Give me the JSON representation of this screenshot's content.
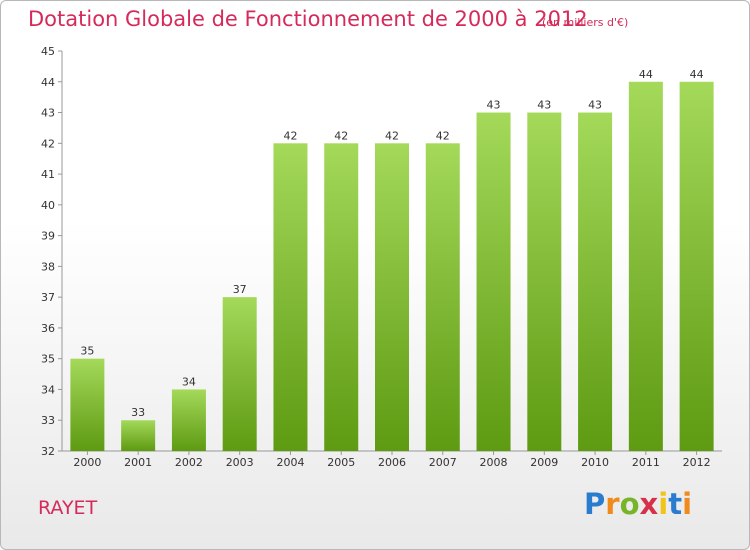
{
  "header": {
    "title": "Dotation Globale de Fonctionnement de 2000 à 2012",
    "subtitle": "(en milliers d'€)"
  },
  "commune": "RAYET",
  "logo": {
    "letters": [
      "P",
      "r",
      "o",
      "x",
      "i",
      "t",
      "i"
    ],
    "colors": [
      "#2a7ccf",
      "#f08a1c",
      "#78b42a",
      "#d5324a",
      "#f0c419",
      "#2a7ccf",
      "#f08a1c"
    ]
  },
  "colors": {
    "bar_top": "#a4d95a",
    "bar_bottom": "#5e9a12",
    "title": "#d52a5a"
  },
  "chart_data": {
    "type": "bar",
    "title": "Dotation Globale de Fonctionnement de 2000 à 2012",
    "subtitle": "(en milliers d'€)",
    "categories": [
      "2000",
      "2001",
      "2002",
      "2003",
      "2004",
      "2005",
      "2006",
      "2007",
      "2008",
      "2009",
      "2010",
      "2011",
      "2012"
    ],
    "values": [
      35,
      33,
      34,
      37,
      42,
      42,
      42,
      42,
      43,
      43,
      43,
      44,
      44
    ],
    "data_labels": [
      "35",
      "33",
      "34",
      "37",
      "42",
      "42",
      "42",
      "42",
      "43",
      "43",
      "43",
      "44",
      "44"
    ],
    "yticks": [
      "32",
      "33",
      "34",
      "35",
      "36",
      "37",
      "38",
      "39",
      "40",
      "41",
      "42",
      "43",
      "44",
      "45"
    ],
    "ylim": [
      32,
      45
    ],
    "grid": false,
    "legend": "none"
  }
}
